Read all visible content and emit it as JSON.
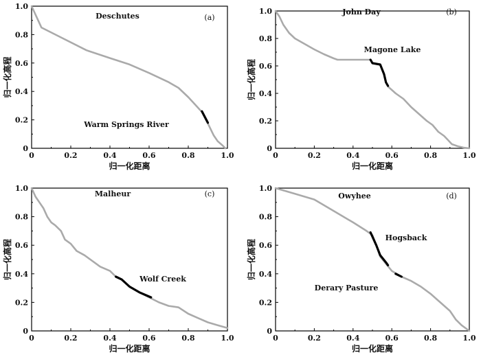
{
  "chart_data": [
    {
      "type": "line",
      "panel_label": "(a)",
      "title": "Deschutes",
      "annotation": "Warm Springs River",
      "xlabel": "归一化距离",
      "ylabel": "归一化高程",
      "xlim": [
        0,
        1.0
      ],
      "ylim": [
        0,
        1.0
      ],
      "xticks": [
        "0",
        "0.2",
        "0.4",
        "0.6",
        "0.8",
        "1.0"
      ],
      "yticks": [
        "0",
        "0.2",
        "0.4",
        "0.6",
        "0.8",
        "1.0"
      ],
      "series": [
        {
          "name": "profile",
          "color": "#aaaaaa",
          "points": [
            [
              0,
              1.0
            ],
            [
              0.05,
              0.85
            ],
            [
              0.15,
              0.78
            ],
            [
              0.28,
              0.69
            ],
            [
              0.4,
              0.635
            ],
            [
              0.5,
              0.59
            ],
            [
              0.6,
              0.53
            ],
            [
              0.7,
              0.465
            ],
            [
              0.75,
              0.425
            ],
            [
              0.8,
              0.36
            ],
            [
              0.84,
              0.3
            ],
            [
              0.87,
              0.255
            ],
            [
              0.9,
              0.175
            ],
            [
              0.93,
              0.09
            ],
            [
              0.95,
              0.05
            ],
            [
              0.975,
              0.02
            ],
            [
              0.99,
              0.0
            ]
          ]
        },
        {
          "name": "Warm Springs River",
          "color": "#000000",
          "points": [
            [
              0.87,
              0.26
            ],
            [
              0.9,
              0.18
            ]
          ]
        }
      ]
    },
    {
      "type": "line",
      "panel_label": "(b)",
      "title": "John Day",
      "annotation": "Magone Lake",
      "xlabel": "归一化距离",
      "ylabel": "归一化高程",
      "xlim": [
        0,
        1.0
      ],
      "ylim": [
        0,
        1.0
      ],
      "xticks": [
        "0",
        "0.2",
        "0.4",
        "0.6",
        "0.8",
        "1.0"
      ],
      "yticks": [
        "0",
        "0.2",
        "0.4",
        "0.6",
        "0.8",
        "1.0"
      ],
      "series": [
        {
          "name": "profile",
          "color": "#aaaaaa",
          "points": [
            [
              0,
              1.0
            ],
            [
              0.02,
              0.96
            ],
            [
              0.04,
              0.9
            ],
            [
              0.07,
              0.84
            ],
            [
              0.1,
              0.8
            ],
            [
              0.15,
              0.76
            ],
            [
              0.2,
              0.72
            ],
            [
              0.25,
              0.685
            ],
            [
              0.3,
              0.655
            ],
            [
              0.32,
              0.645
            ],
            [
              0.45,
              0.645
            ],
            [
              0.49,
              0.645
            ],
            [
              0.5,
              0.62
            ],
            [
              0.54,
              0.61
            ],
            [
              0.56,
              0.54
            ],
            [
              0.57,
              0.48
            ],
            [
              0.58,
              0.45
            ],
            [
              0.62,
              0.4
            ],
            [
              0.66,
              0.36
            ],
            [
              0.7,
              0.3
            ],
            [
              0.74,
              0.25
            ],
            [
              0.78,
              0.2
            ],
            [
              0.81,
              0.17
            ],
            [
              0.84,
              0.12
            ],
            [
              0.87,
              0.09
            ],
            [
              0.89,
              0.06
            ],
            [
              0.91,
              0.03
            ],
            [
              0.94,
              0.015
            ],
            [
              0.97,
              0.005
            ],
            [
              1.0,
              0.0
            ]
          ]
        },
        {
          "name": "Magone Lake",
          "color": "#000000",
          "points": [
            [
              0.49,
              0.645
            ],
            [
              0.5,
              0.62
            ],
            [
              0.54,
              0.61
            ],
            [
              0.56,
              0.54
            ],
            [
              0.57,
              0.48
            ],
            [
              0.58,
              0.455
            ]
          ]
        }
      ]
    },
    {
      "type": "line",
      "panel_label": "(c)",
      "title": "Malheur",
      "annotation": "Wolf Creek",
      "xlabel": "归一化距离",
      "ylabel": "归一化高程",
      "xlim": [
        0,
        1.0
      ],
      "ylim": [
        0,
        1.0
      ],
      "xticks": [
        "0",
        "0.2",
        "0.4",
        "0.6",
        "0.8",
        "1.0"
      ],
      "yticks": [
        "0",
        "0.2",
        "0.4",
        "0.6",
        "0.8",
        "1.0"
      ],
      "series": [
        {
          "name": "profile",
          "color": "#aaaaaa",
          "points": [
            [
              0,
              1.0
            ],
            [
              0.02,
              0.94
            ],
            [
              0.04,
              0.9
            ],
            [
              0.06,
              0.86
            ],
            [
              0.08,
              0.8
            ],
            [
              0.1,
              0.76
            ],
            [
              0.12,
              0.74
            ],
            [
              0.15,
              0.7
            ],
            [
              0.17,
              0.64
            ],
            [
              0.2,
              0.61
            ],
            [
              0.23,
              0.56
            ],
            [
              0.27,
              0.53
            ],
            [
              0.3,
              0.5
            ],
            [
              0.35,
              0.45
            ],
            [
              0.4,
              0.42
            ],
            [
              0.43,
              0.38
            ],
            [
              0.46,
              0.36
            ],
            [
              0.5,
              0.31
            ],
            [
              0.55,
              0.27
            ],
            [
              0.6,
              0.235
            ],
            [
              0.65,
              0.2
            ],
            [
              0.7,
              0.175
            ],
            [
              0.75,
              0.165
            ],
            [
              0.8,
              0.12
            ],
            [
              0.85,
              0.09
            ],
            [
              0.9,
              0.06
            ],
            [
              0.95,
              0.04
            ],
            [
              1.0,
              0.02
            ]
          ]
        },
        {
          "name": "Wolf Creek",
          "color": "#000000",
          "points": [
            [
              0.43,
              0.38
            ],
            [
              0.46,
              0.36
            ],
            [
              0.5,
              0.31
            ],
            [
              0.55,
              0.27
            ],
            [
              0.61,
              0.235
            ]
          ]
        }
      ]
    },
    {
      "type": "line",
      "panel_label": "(d)",
      "title": "Owyhee",
      "annotation": "Hogsback",
      "annotation2": "Derary Pasture",
      "xlabel": "归一化距离",
      "ylabel": "归一化高程",
      "xlim": [
        0,
        1.0
      ],
      "ylim": [
        0,
        1.0
      ],
      "xticks": [
        "0",
        "0.2",
        "0.4",
        "0.6",
        "0.8",
        "1.0"
      ],
      "yticks": [
        "0",
        "0.2",
        "0.4",
        "0.6",
        "0.8",
        "1.0"
      ],
      "series": [
        {
          "name": "profile",
          "color": "#aaaaaa",
          "points": [
            [
              0,
              1.0
            ],
            [
              0.1,
              0.96
            ],
            [
              0.2,
              0.92
            ],
            [
              0.3,
              0.84
            ],
            [
              0.4,
              0.76
            ],
            [
              0.47,
              0.7
            ],
            [
              0.5,
              0.67
            ],
            [
              0.52,
              0.6
            ],
            [
              0.54,
              0.52
            ],
            [
              0.57,
              0.47
            ],
            [
              0.6,
              0.42
            ],
            [
              0.65,
              0.38
            ],
            [
              0.7,
              0.35
            ],
            [
              0.75,
              0.31
            ],
            [
              0.8,
              0.26
            ],
            [
              0.85,
              0.2
            ],
            [
              0.9,
              0.14
            ],
            [
              0.93,
              0.08
            ],
            [
              0.96,
              0.04
            ],
            [
              1.0,
              0.0
            ]
          ]
        },
        {
          "name": "Hogsback",
          "color": "#000000",
          "points": [
            [
              0.49,
              0.69
            ],
            [
              0.52,
              0.6
            ],
            [
              0.54,
              0.53
            ],
            [
              0.57,
              0.48
            ],
            [
              0.58,
              0.46
            ]
          ]
        },
        {
          "name": "Derary Pasture",
          "color": "#000000",
          "points": [
            [
              0.62,
              0.4
            ],
            [
              0.65,
              0.38
            ]
          ]
        }
      ]
    }
  ]
}
